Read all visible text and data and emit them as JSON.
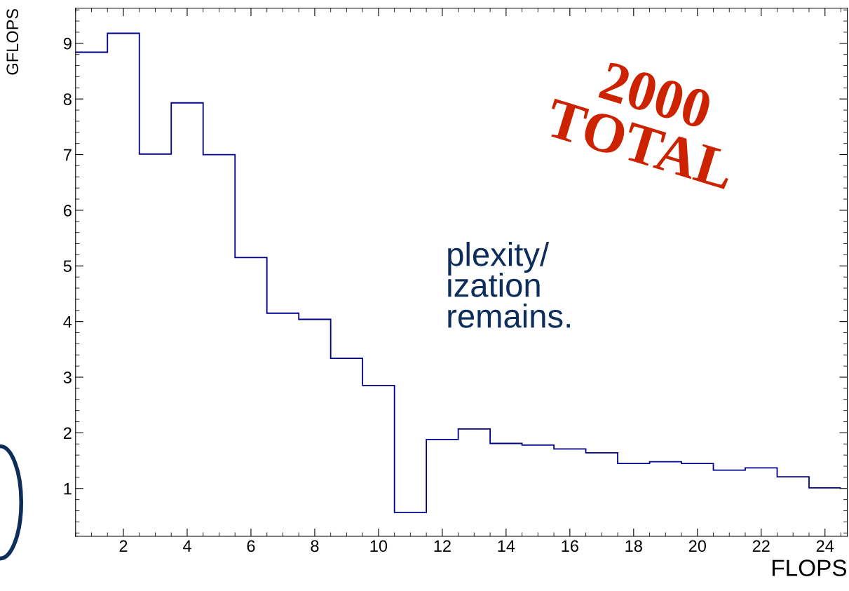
{
  "chart_data": {
    "type": "histogram",
    "xlabel": "FLOPS",
    "ylabel": "GFLOPS",
    "bins": [
      0.5,
      1.5,
      2.5,
      3.5,
      4.5,
      5.5,
      6.5,
      7.5,
      8.5,
      9.5,
      10.5,
      11.5,
      12.5,
      13.5,
      14.5,
      15.5,
      16.5,
      17.5,
      18.5,
      19.5,
      20.5,
      21.5,
      22.5,
      23.5,
      24.5
    ],
    "values": [
      8.84,
      9.18,
      7.01,
      7.93,
      7.0,
      5.15,
      4.15,
      4.04,
      3.34,
      2.85,
      0.57,
      1.88,
      2.07,
      1.81,
      1.78,
      1.71,
      1.64,
      1.45,
      1.48,
      1.45,
      1.33,
      1.37,
      1.21,
      1.01
    ],
    "color": "#00008b",
    "xlim": [
      0.5,
      24.7
    ],
    "ylim": [
      0.14,
      9.63
    ],
    "xticks": [
      2,
      4,
      6,
      8,
      10,
      12,
      14,
      16,
      18,
      20,
      22,
      24
    ],
    "yticks": [
      1,
      2,
      3,
      4,
      5,
      6,
      7,
      8,
      9
    ],
    "grid": false,
    "annotations": [
      "2000\nTOTAL",
      "plexity/\nization\nremains."
    ]
  }
}
